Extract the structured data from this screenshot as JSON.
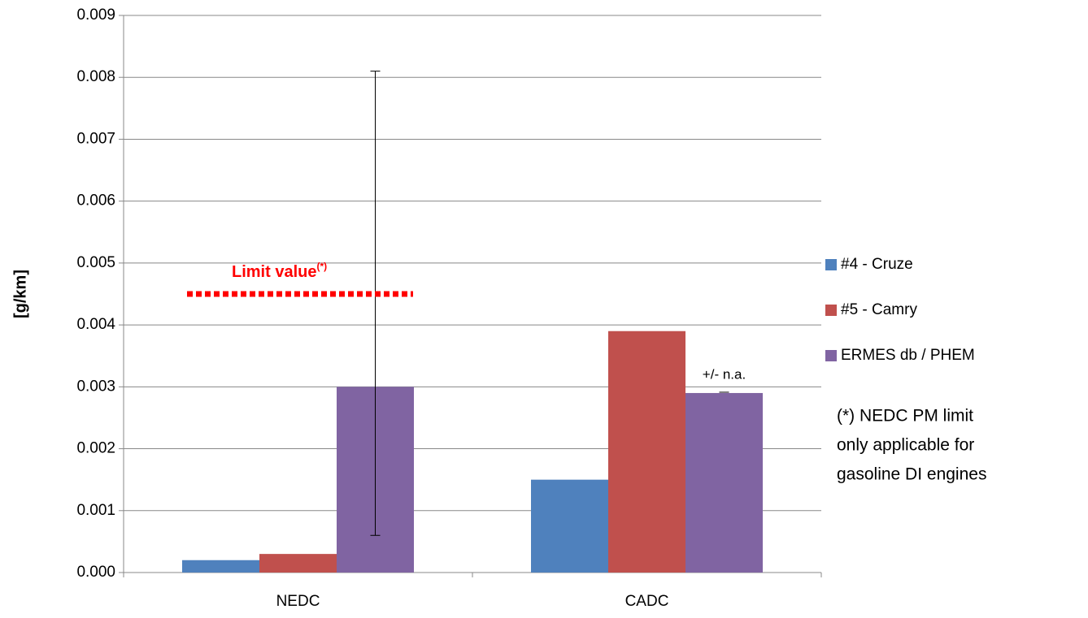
{
  "chart_data": {
    "type": "bar",
    "y_label": "[g/km]",
    "categories": [
      "NEDC",
      "CADC"
    ],
    "series": [
      {
        "name": "#4 - Cruze",
        "color": "#4f81bd",
        "values": [
          0.0002,
          0.0015
        ]
      },
      {
        "name": "#5 - Camry",
        "color": "#c0504d",
        "values": [
          0.0003,
          0.0039
        ]
      },
      {
        "name": "ERMES db / PHEM",
        "color": "#8064a2",
        "values": [
          0.003,
          0.0029
        ],
        "error_lower": [
          0.0024,
          null
        ],
        "error_upper": [
          0.0051,
          null
        ]
      }
    ],
    "ylim": [
      0,
      0.009
    ],
    "yticks": [
      {
        "value": 0,
        "label": "0.000"
      },
      {
        "value": 0.001,
        "label": "0.001"
      },
      {
        "value": 0.002,
        "label": "0.002"
      },
      {
        "value": 0.003,
        "label": "0.003"
      },
      {
        "value": 0.004,
        "label": "0.004"
      },
      {
        "value": 0.005,
        "label": "0.005"
      },
      {
        "value": 0.006,
        "label": "0.006"
      },
      {
        "value": 0.007,
        "label": "0.007"
      },
      {
        "value": 0.008,
        "label": "0.008"
      },
      {
        "value": 0.009,
        "label": "0.009"
      }
    ],
    "grid": true,
    "legend": "right",
    "limit_line": {
      "text": "Limit value",
      "superscript": "(*)",
      "value": 0.0045,
      "color": "#ff0000"
    },
    "na_note": "+/- n.a.",
    "footnote": [
      "(*) NEDC PM limit",
      "only applicable for",
      "gasoline DI engines"
    ]
  }
}
